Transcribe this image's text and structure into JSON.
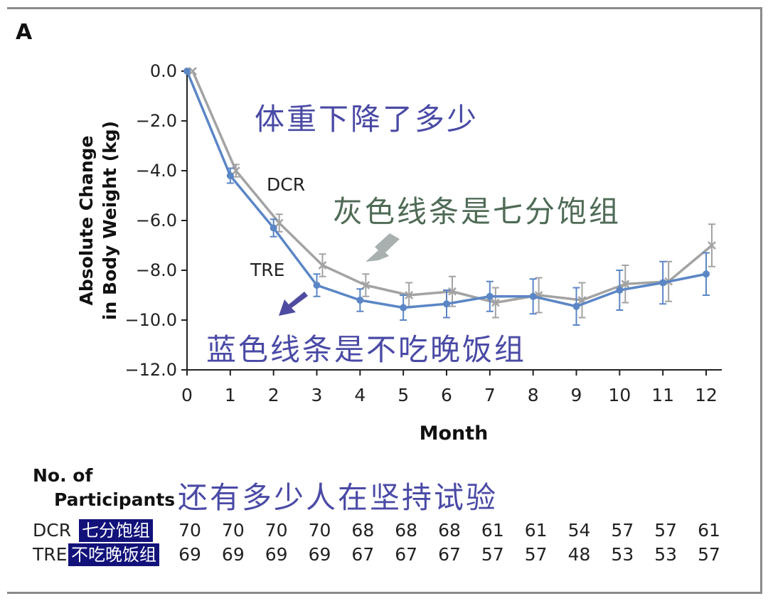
{
  "panel_label": "A",
  "annotations": {
    "title": "体重下降了多少",
    "gray_line": "灰色线条是七分饱组",
    "blue_line": "蓝色线条是不吃晚饭组",
    "table": "还有多少人在坚持试验"
  },
  "colors": {
    "dcr": "#a3a3a3",
    "tre": "#5b86c6",
    "gray_arrow": "#a8b0b0",
    "blue_arrow": "#4e4ba0",
    "annotation_blue": "#4a4aa6",
    "annotation_green": "#4f6b56",
    "tag_bg": "#12127a"
  },
  "chart_data": {
    "type": "line",
    "xlabel": "Month",
    "ylabel_lines": [
      "Absolute Change",
      "in Body Weight (kg)"
    ],
    "x": [
      0,
      1,
      2,
      3,
      4,
      5,
      6,
      7,
      8,
      9,
      10,
      11,
      12
    ],
    "xlim": [
      0,
      12
    ],
    "ylim": [
      -12.0,
      0.0
    ],
    "yticks": [
      0.0,
      -2.0,
      -4.0,
      -6.0,
      -8.0,
      -10.0,
      -12.0
    ],
    "ytick_labels": [
      "0.0",
      "−2.0",
      "−4.0",
      "−6.0",
      "−8.0",
      "−10.0",
      "−12.0"
    ],
    "xtick_labels": [
      "0",
      "1",
      "2",
      "3",
      "4",
      "5",
      "6",
      "7",
      "8",
      "9",
      "10",
      "11",
      "12"
    ],
    "series": [
      {
        "name": "DCR",
        "label": "DCR",
        "marker": "x",
        "values": [
          0.0,
          -4.0,
          -6.1,
          -7.8,
          -8.6,
          -9.0,
          -8.85,
          -9.3,
          -9.0,
          -9.2,
          -8.55,
          -8.45,
          -7.0
        ],
        "error": [
          0.0,
          0.25,
          0.35,
          0.45,
          0.45,
          0.5,
          0.6,
          0.6,
          0.7,
          0.7,
          0.75,
          0.8,
          0.85
        ]
      },
      {
        "name": "TRE",
        "label": "TRE",
        "marker": "circle",
        "values": [
          0.0,
          -4.2,
          -6.3,
          -8.6,
          -9.2,
          -9.5,
          -9.35,
          -9.05,
          -9.05,
          -9.45,
          -8.8,
          -8.5,
          -8.15
        ],
        "error": [
          0.0,
          0.3,
          0.35,
          0.45,
          0.45,
          0.5,
          0.55,
          0.6,
          0.7,
          0.75,
          0.8,
          0.85,
          0.85
        ]
      }
    ]
  },
  "participants": {
    "heading_line1": "No. of",
    "heading_line2": "Participants",
    "rows": [
      {
        "label": "DCR",
        "tag": "七分饱组",
        "counts": [
          "70",
          "70",
          "70",
          "70",
          "68",
          "68",
          "68",
          "61",
          "61",
          "54",
          "57",
          "57",
          "61"
        ]
      },
      {
        "label": "TRE",
        "tag": "不吃晚饭组",
        "counts": [
          "69",
          "69",
          "69",
          "69",
          "67",
          "67",
          "67",
          "57",
          "57",
          "48",
          "53",
          "53",
          "57"
        ]
      }
    ]
  }
}
